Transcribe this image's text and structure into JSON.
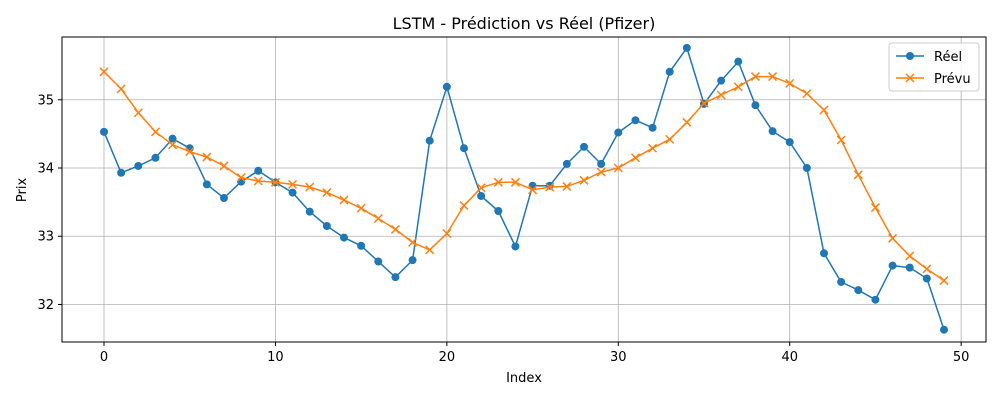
{
  "chart_data": {
    "type": "line",
    "title": "LSTM - Prédiction vs Réel (Pfizer)",
    "xlabel": "Index",
    "ylabel": "Prix",
    "xlim": [
      -2.45,
      51.45
    ],
    "ylim": [
      31.45,
      35.92
    ],
    "xticks": [
      0,
      10,
      20,
      30,
      40,
      50
    ],
    "yticks": [
      32,
      33,
      34,
      35
    ],
    "grid": true,
    "legend_position": "top-right",
    "x": [
      0,
      1,
      2,
      3,
      4,
      5,
      6,
      7,
      8,
      9,
      10,
      11,
      12,
      13,
      14,
      15,
      16,
      17,
      18,
      19,
      20,
      21,
      22,
      23,
      24,
      25,
      26,
      27,
      28,
      29,
      30,
      31,
      32,
      33,
      34,
      35,
      36,
      37,
      38,
      39,
      40,
      41,
      42,
      43,
      44,
      45,
      46,
      47,
      48,
      49
    ],
    "series": [
      {
        "name": "Réel",
        "color": "#1f77b4",
        "marker": "circle",
        "values": [
          34.53,
          33.93,
          34.03,
          34.15,
          34.43,
          34.29,
          33.76,
          33.56,
          33.8,
          33.96,
          33.79,
          33.64,
          33.36,
          33.15,
          32.98,
          32.86,
          32.63,
          32.4,
          32.65,
          34.4,
          35.19,
          34.29,
          33.59,
          33.37,
          32.85,
          33.74,
          33.74,
          34.06,
          34.31,
          34.06,
          34.52,
          34.7,
          34.59,
          35.41,
          35.76,
          34.94,
          35.28,
          35.56,
          34.92,
          34.54,
          34.38,
          34.0,
          32.75,
          32.33,
          32.21,
          32.07,
          32.57,
          32.54,
          32.38,
          31.63
        ]
      },
      {
        "name": "Prévu",
        "color": "#ff7f0e",
        "marker": "x",
        "values": [
          35.41,
          35.16,
          34.81,
          34.53,
          34.34,
          34.24,
          34.16,
          34.03,
          33.86,
          33.81,
          33.79,
          33.76,
          33.72,
          33.64,
          33.53,
          33.41,
          33.26,
          33.1,
          32.91,
          32.8,
          33.04,
          33.45,
          33.71,
          33.79,
          33.79,
          33.68,
          33.72,
          33.73,
          33.82,
          33.94,
          34.0,
          34.15,
          34.29,
          34.42,
          34.67,
          34.95,
          35.07,
          35.19,
          35.34,
          35.34,
          35.24,
          35.09,
          34.85,
          34.41,
          33.9,
          33.42,
          32.97,
          32.71,
          32.52,
          32.35
        ]
      }
    ]
  }
}
